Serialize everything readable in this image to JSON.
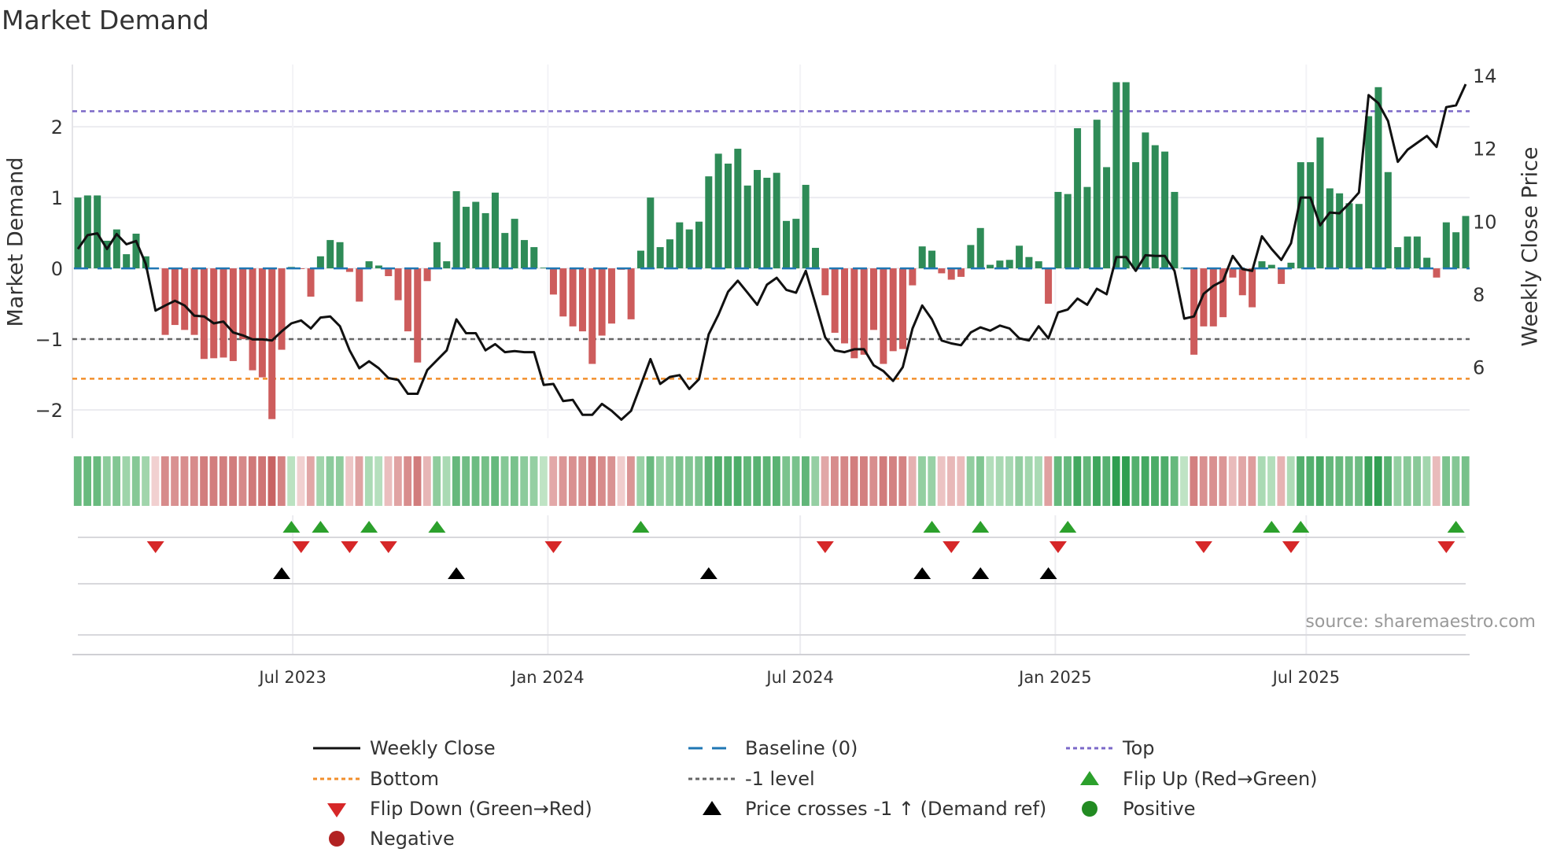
{
  "title": "Market Demand",
  "source": "source: sharemaestro.com",
  "chart_data": {
    "type": "bar+line",
    "title": "Market Demand",
    "ylabel_left": "Market Demand",
    "ylabel_right": "Weekly Close Price",
    "x_start": "2023-01-27",
    "x_step_days": 7,
    "ylim_left": [
      -2.4,
      2.88
    ],
    "ylim_right": [
      4.05,
      14.3
    ],
    "yticks_left": [
      {
        "v": -2,
        "label": "−2"
      },
      {
        "v": -1,
        "label": "−1"
      },
      {
        "v": 0,
        "label": "0"
      },
      {
        "v": 1,
        "label": "1"
      },
      {
        "v": 2,
        "label": "2"
      }
    ],
    "yticks_right": [
      {
        "v": 6,
        "label": "6"
      },
      {
        "v": 8,
        "label": "8"
      },
      {
        "v": 10,
        "label": "10"
      },
      {
        "v": 12,
        "label": "12"
      },
      {
        "v": 14,
        "label": "14"
      }
    ],
    "xticks": [
      {
        "date": "2023-07-01",
        "label": "Jul 2023"
      },
      {
        "date": "2024-01-01",
        "label": "Jan 2024"
      },
      {
        "date": "2024-07-01",
        "label": "Jul 2024"
      },
      {
        "date": "2025-01-01",
        "label": "Jan 2025"
      },
      {
        "date": "2025-07-01",
        "label": "Jul 2025"
      }
    ],
    "reference_lines": {
      "top": 2.22,
      "bottom": -1.56,
      "minus_one": -1,
      "baseline": 0
    },
    "demand": [
      1.0,
      1.03,
      1.03,
      0.39,
      0.55,
      0.2,
      0.49,
      0.17,
      -0.01,
      -0.94,
      -0.8,
      -0.87,
      -0.94,
      -1.28,
      -1.27,
      -1.26,
      -1.31,
      -1.0,
      -1.44,
      -1.54,
      -2.13,
      -1.15,
      0.02,
      -0.01,
      -0.4,
      0.17,
      0.4,
      0.37,
      -0.05,
      -0.47,
      0.1,
      0.04,
      -0.11,
      -0.45,
      -0.89,
      -1.33,
      -0.18,
      0.37,
      0.1,
      1.09,
      0.87,
      0.94,
      0.78,
      1.07,
      0.5,
      0.7,
      0.4,
      0.3,
      0.01,
      -0.37,
      -0.68,
      -0.82,
      -0.89,
      -1.35,
      -0.95,
      -0.78,
      -0.02,
      -0.72,
      0.25,
      1.0,
      0.3,
      0.41,
      0.65,
      0.55,
      0.66,
      1.3,
      1.62,
      1.48,
      1.69,
      1.17,
      1.39,
      1.28,
      1.35,
      0.67,
      0.7,
      1.18,
      0.29,
      -0.38,
      -0.91,
      -1.06,
      -1.27,
      -1.22,
      -0.87,
      -1.35,
      -1.17,
      -1.14,
      -0.24,
      0.31,
      0.25,
      -0.07,
      -0.16,
      -0.12,
      0.33,
      0.57,
      0.05,
      0.11,
      0.12,
      0.32,
      0.16,
      0.1,
      -0.5,
      1.08,
      1.05,
      1.98,
      1.15,
      2.1,
      1.43,
      2.63,
      2.63,
      1.5,
      1.92,
      1.74,
      1.65,
      1.08,
      0.01,
      -1.22,
      -0.82,
      -0.82,
      -0.69,
      -0.13,
      -0.38,
      -0.55,
      0.1,
      0.05,
      -0.22,
      0.08,
      1.5,
      1.5,
      1.85,
      1.13,
      1.06,
      0.92,
      0.91,
      2.15,
      2.56,
      1.36,
      0.3,
      0.45,
      0.45,
      0.15,
      -0.13,
      0.65,
      0.51,
      0.74
    ],
    "weekly_close": [
      9.24,
      9.62,
      9.67,
      9.24,
      9.65,
      9.37,
      9.46,
      8.83,
      7.55,
      7.69,
      7.82,
      7.69,
      7.41,
      7.39,
      7.2,
      7.25,
      6.95,
      6.87,
      6.76,
      6.76,
      6.73,
      6.98,
      7.2,
      7.28,
      7.06,
      7.36,
      7.39,
      7.12,
      6.46,
      5.97,
      6.16,
      5.97,
      5.7,
      5.65,
      5.27,
      5.27,
      5.92,
      6.19,
      6.46,
      7.31,
      6.93,
      6.93,
      6.46,
      6.63,
      6.41,
      6.44,
      6.41,
      6.41,
      5.51,
      5.54,
      5.07,
      5.1,
      4.69,
      4.69,
      4.99,
      4.8,
      4.56,
      4.8,
      5.51,
      6.22,
      5.54,
      5.73,
      5.78,
      5.4,
      5.67,
      6.9,
      7.44,
      8.07,
      8.37,
      8.04,
      7.71,
      8.26,
      8.45,
      8.12,
      8.04,
      8.64,
      7.74,
      6.82,
      6.46,
      6.41,
      6.49,
      6.49,
      6.05,
      5.89,
      5.62,
      6.0,
      7.06,
      7.69,
      7.31,
      6.73,
      6.65,
      6.6,
      6.95,
      7.09,
      7.0,
      7.14,
      7.06,
      6.79,
      6.73,
      7.12,
      6.79,
      7.5,
      7.58,
      7.88,
      7.71,
      8.15,
      8.0,
      9.02,
      9.02,
      8.64,
      9.07,
      9.05,
      9.05,
      8.64,
      7.33,
      7.39,
      8.01,
      8.23,
      8.37,
      9.05,
      8.69,
      8.64,
      9.59,
      9.24,
      8.94,
      9.4,
      10.65,
      10.65,
      9.89,
      10.24,
      10.22,
      10.49,
      10.79,
      13.46,
      13.24,
      12.75,
      11.63,
      11.96,
      12.15,
      12.34,
      12.04,
      13.13,
      13.18,
      13.76
    ],
    "flip_up_idx": [
      22,
      25,
      30,
      37,
      58,
      88,
      93,
      102,
      123,
      126,
      142
    ],
    "flip_down_idx": [
      8,
      23,
      28,
      32,
      49,
      77,
      90,
      101,
      116,
      125,
      141
    ],
    "price_cross_idx": [
      21,
      39,
      65,
      87,
      93,
      100
    ],
    "legend": [
      {
        "key": "weekly_close",
        "label": "Weekly Close"
      },
      {
        "key": "baseline",
        "label": "Baseline (0)"
      },
      {
        "key": "top",
        "label": "Top"
      },
      {
        "key": "bottom",
        "label": "Bottom"
      },
      {
        "key": "minus_one",
        "label": "-1 level"
      },
      {
        "key": "flip_up",
        "label": "Flip Up (Red→Green)"
      },
      {
        "key": "flip_down",
        "label": "Flip Down (Green→Red)"
      },
      {
        "key": "price_cross",
        "label": "Price crosses -1 ↑ (Demand ref)"
      },
      {
        "key": "positive",
        "label": "Positive"
      },
      {
        "key": "negative",
        "label": "Negative"
      }
    ],
    "legend_position": "bottom"
  },
  "colors": {
    "positive_bar": "#2e8b57",
    "negative_bar": "#cd5c5c",
    "line": "#111111",
    "baseline": "#1f77b4",
    "top": "#7b68c8",
    "bottom": "#f28e2b",
    "minus_one": "#666666",
    "flip_up": "#2ca02c",
    "flip_down": "#d62728",
    "price_cross": "#000000",
    "positive_dot": "#228b22",
    "negative_dot": "#b22222"
  }
}
